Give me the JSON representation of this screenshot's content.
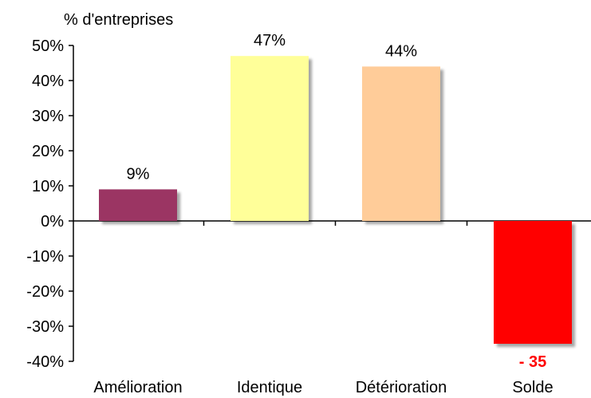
{
  "chart_data": {
    "type": "bar",
    "ylabel": "% d'entreprises",
    "categories": [
      "Amélioration",
      "Identique",
      "Détérioration",
      "Solde"
    ],
    "values": [
      9,
      47,
      44,
      -35
    ],
    "data_labels": [
      "9%",
      "47%",
      "44%",
      "- 35"
    ],
    "colors": [
      "#9b3563",
      "#ffff99",
      "#ffcc99",
      "#ff0000"
    ],
    "label_colors": [
      "#000000",
      "#000000",
      "#000000",
      "#ff0000"
    ],
    "ylim": [
      -40,
      50
    ],
    "yticks": [
      50,
      40,
      30,
      20,
      10,
      0,
      -10,
      -20,
      -30,
      -40
    ],
    "ytick_labels": [
      "50%",
      "40%",
      "30%",
      "20%",
      "10%",
      "0%",
      "-10%",
      "-20%",
      "-30%",
      "-40%"
    ],
    "grid": false,
    "legend": false
  }
}
